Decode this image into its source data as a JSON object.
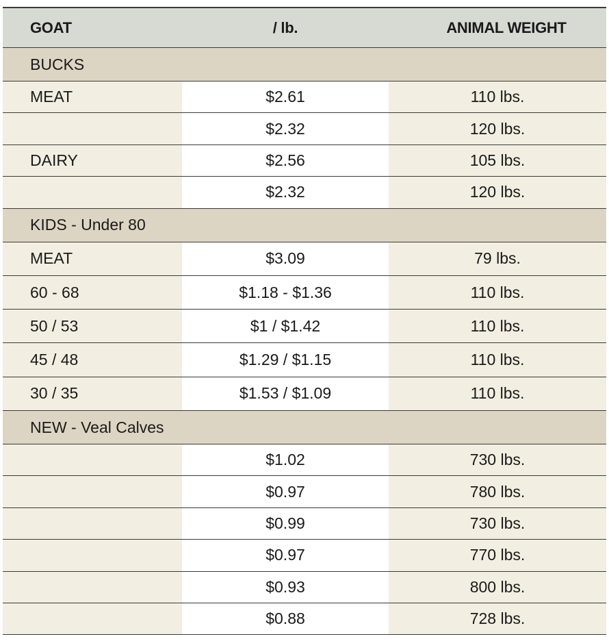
{
  "headers": [
    "GOAT",
    "/ lb.",
    "ANIMAL WEIGHT"
  ],
  "sections": [
    {
      "title": "BUCKS",
      "rows": [
        {
          "name": "MEAT",
          "price": "$2.61",
          "weight": "110 lbs."
        },
        {
          "name": "",
          "price": "$2.32",
          "weight": "120 lbs."
        },
        {
          "name": "DAIRY",
          "price": "$2.56",
          "weight": "105 lbs."
        },
        {
          "name": "",
          "price": "$2.32",
          "weight": "120 lbs."
        }
      ]
    },
    {
      "title": "KIDS - Under 80",
      "rows": [
        {
          "name": "MEAT",
          "price": "$3.09",
          "weight": "79 lbs."
        },
        {
          "name": "60 - 68",
          "price": "$1.18 - $1.36",
          "weight": "110 lbs."
        },
        {
          "name": "50 / 53",
          "price": "$1 / $1.42",
          "weight": "110 lbs."
        },
        {
          "name": "45 / 48",
          "price": "$1.29 / $1.15",
          "weight": "110 lbs."
        },
        {
          "name": "30 / 35",
          "price": "$1.53 / $1.09",
          "weight": "110 lbs."
        }
      ]
    },
    {
      "title": "NEW - Veal Calves",
      "rows": [
        {
          "name": "",
          "price": "$1.02",
          "weight": "730 lbs."
        },
        {
          "name": "",
          "price": "$0.97",
          "weight": "780 lbs."
        },
        {
          "name": "",
          "price": "$0.99",
          "weight": "730 lbs."
        },
        {
          "name": "",
          "price": "$0.97",
          "weight": "770 lbs."
        },
        {
          "name": "",
          "price": "$0.93",
          "weight": "800 lbs."
        },
        {
          "name": "",
          "price": "$0.88",
          "weight": "728 lbs."
        }
      ]
    }
  ]
}
